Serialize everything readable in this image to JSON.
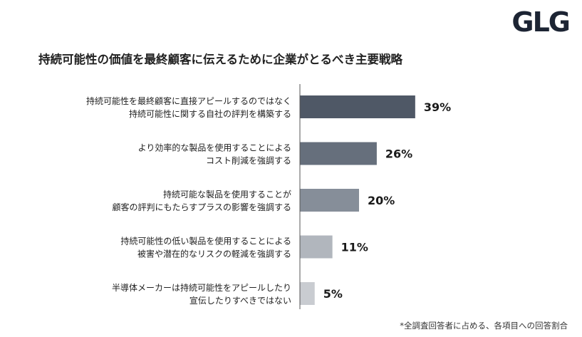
{
  "logo": "GLG",
  "chart_data": {
    "type": "bar",
    "orientation": "horizontal",
    "title": "持続可能性の価値を最終顧客に伝えるために企業がとるべき主要戦略",
    "categories": [
      [
        "持続可能性を最終顧客に直接アピールするのではなく",
        "持続可能性に関する自社の評判を構築する"
      ],
      [
        "より効率的な製品を使用することによる",
        "コスト削減を強調する"
      ],
      [
        "持続可能な製品を使用することが",
        "顧客の評判にもたらすプラスの影響を強調する"
      ],
      [
        "持続可能性の低い製品を使用することによる",
        "被害や潜在的なリスクの軽減を強調する"
      ],
      [
        "半導体メーカーは持続可能性をアピールしたり",
        "宣伝したりすべきではない"
      ]
    ],
    "values": [
      39,
      26,
      20,
      11,
      5
    ],
    "value_labels": [
      "39%",
      "26%",
      "20%",
      "11%",
      "5%"
    ],
    "colors": [
      "#4f5866",
      "#666f7c",
      "#868e99",
      "#b1b6bd",
      "#c9ccd1"
    ],
    "xlim": [
      0,
      100
    ],
    "grid": false,
    "legend": "none"
  },
  "footnote": "*全調査回答者に占める、各項目への回答割合"
}
